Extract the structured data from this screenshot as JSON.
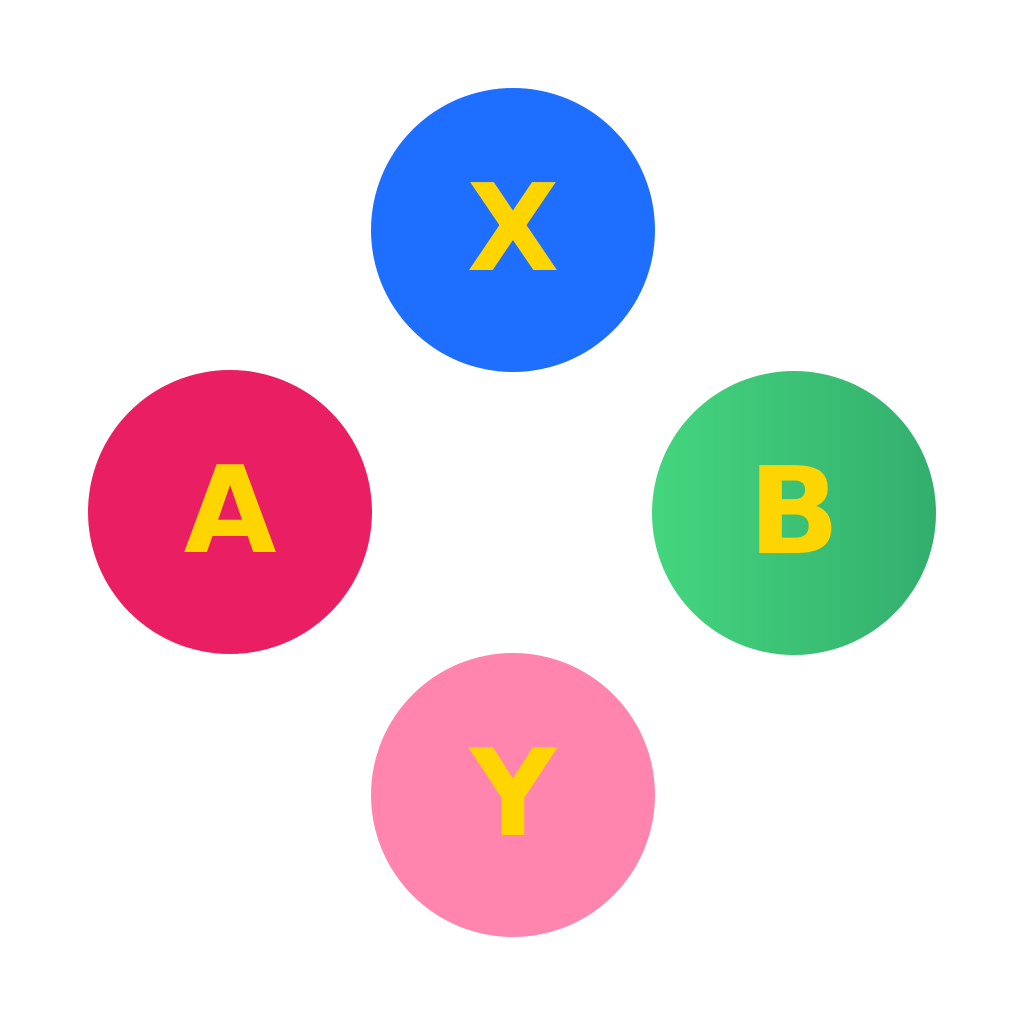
{
  "buttons": {
    "x": {
      "label": "X",
      "color": "#1E6EFF"
    },
    "a": {
      "label": "A",
      "color": "#E91E63"
    },
    "b": {
      "label": "B",
      "color_start": "#44D67E",
      "color_end": "#33AE6D"
    },
    "y": {
      "label": "Y",
      "color": "#FF85AF"
    }
  },
  "label_color": "#FFD500"
}
